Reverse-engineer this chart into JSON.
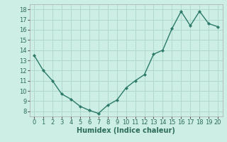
{
  "x": [
    0,
    1,
    2,
    3,
    4,
    5,
    6,
    7,
    8,
    9,
    10,
    11,
    12,
    13,
    14,
    15,
    16,
    17,
    18,
    19,
    20
  ],
  "y": [
    13.5,
    12.0,
    11.0,
    9.7,
    9.2,
    8.5,
    8.1,
    7.8,
    8.6,
    9.1,
    10.3,
    11.0,
    11.6,
    13.6,
    14.0,
    16.1,
    17.8,
    16.4,
    17.8,
    16.6,
    16.3
  ],
  "line_color": "#2d7a6a",
  "marker": "D",
  "marker_size": 2.2,
  "line_width": 1.0,
  "background_color": "#cceee4",
  "grid_color": "#b0d8cc",
  "xlabel": "Humidex (Indice chaleur)",
  "xlabel_fontsize": 7,
  "xlabel_bold": true,
  "ylim": [
    7.5,
    18.5
  ],
  "xlim": [
    -0.5,
    20.5
  ],
  "yticks": [
    8,
    9,
    10,
    11,
    12,
    13,
    14,
    15,
    16,
    17,
    18
  ],
  "xticks": [
    0,
    1,
    2,
    3,
    4,
    5,
    6,
    7,
    8,
    9,
    10,
    11,
    12,
    13,
    14,
    15,
    16,
    17,
    18,
    19,
    20
  ],
  "tick_fontsize": 6
}
